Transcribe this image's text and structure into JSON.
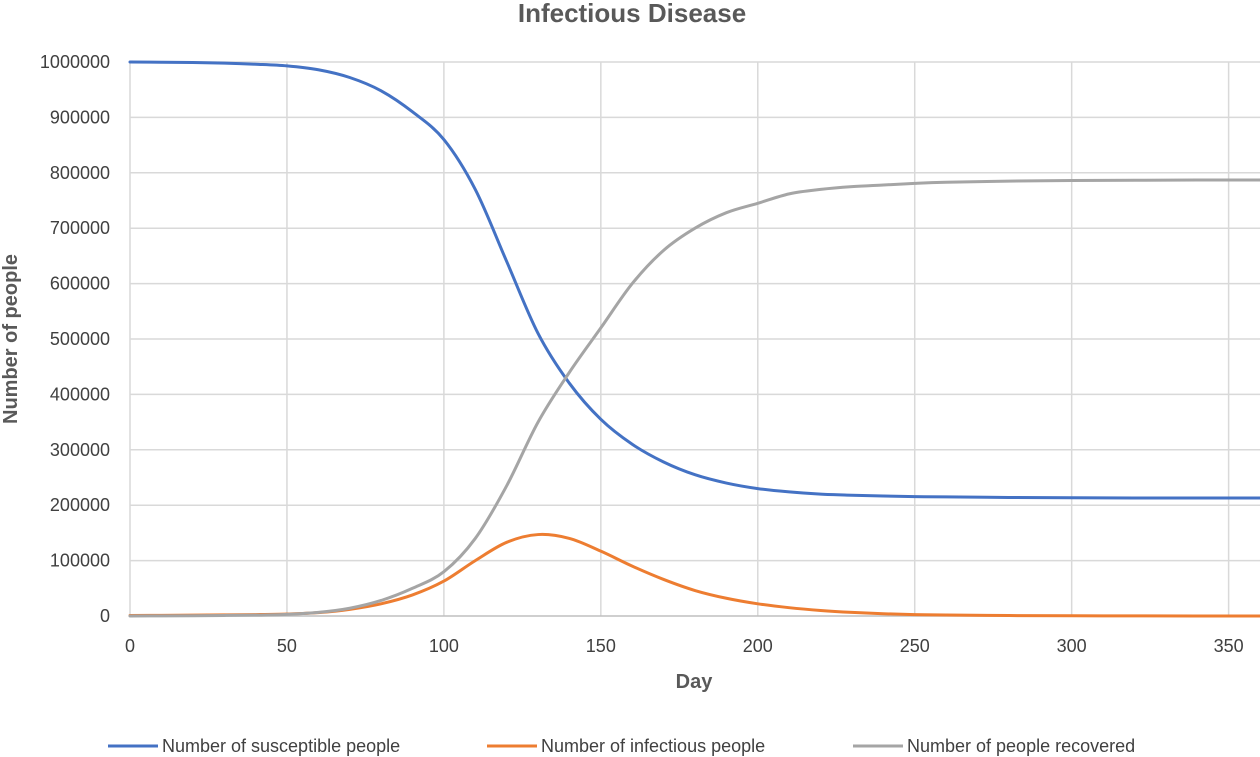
{
  "chart_data": {
    "type": "line",
    "title": "Infectious Disease",
    "xlabel": "Day",
    "ylabel": "Number of people",
    "xlim": [
      0,
      360
    ],
    "ylim": [
      0,
      1000000
    ],
    "x_ticks": [
      0,
      50,
      100,
      150,
      200,
      250,
      300,
      350
    ],
    "y_ticks": [
      0,
      100000,
      200000,
      300000,
      400000,
      500000,
      600000,
      700000,
      800000,
      900000,
      1000000
    ],
    "grid": true,
    "legend_position": "bottom",
    "x": [
      0,
      10,
      20,
      30,
      40,
      50,
      60,
      70,
      80,
      90,
      100,
      110,
      120,
      130,
      140,
      150,
      160,
      170,
      180,
      190,
      200,
      210,
      220,
      230,
      240,
      250,
      260,
      280,
      300,
      320,
      340,
      360
    ],
    "series": [
      {
        "name": "Number of susceptible people",
        "color": "#4472c4",
        "values": [
          1000000,
          999500,
          999000,
          998000,
          996000,
          993000,
          986000,
          972000,
          948000,
          910000,
          860000,
          770000,
          640000,
          510000,
          420000,
          355000,
          310000,
          278000,
          255000,
          240000,
          230000,
          224000,
          220000,
          218000,
          216500,
          215500,
          215000,
          214000,
          213500,
          213000,
          213000,
          213000
        ]
      },
      {
        "name": "Number of infectious people",
        "color": "#ed7d31",
        "values": [
          1000,
          1200,
          1500,
          2000,
          2500,
          3500,
          6000,
          12000,
          22000,
          38000,
          63000,
          100000,
          133000,
          147000,
          140000,
          117000,
          90000,
          66000,
          46000,
          32000,
          22000,
          15000,
          10000,
          6500,
          4000,
          2500,
          1700,
          800,
          400,
          200,
          100,
          50
        ]
      },
      {
        "name": "Number of people recovered",
        "color": "#a5a5a5",
        "values": [
          0,
          200,
          500,
          1000,
          1500,
          3000,
          6500,
          14000,
          28000,
          50000,
          80000,
          140000,
          235000,
          350000,
          440000,
          520000,
          600000,
          660000,
          700000,
          728000,
          745000,
          762000,
          770000,
          775000,
          778000,
          781000,
          783000,
          785000,
          786000,
          786500,
          787000,
          787000
        ]
      }
    ]
  }
}
